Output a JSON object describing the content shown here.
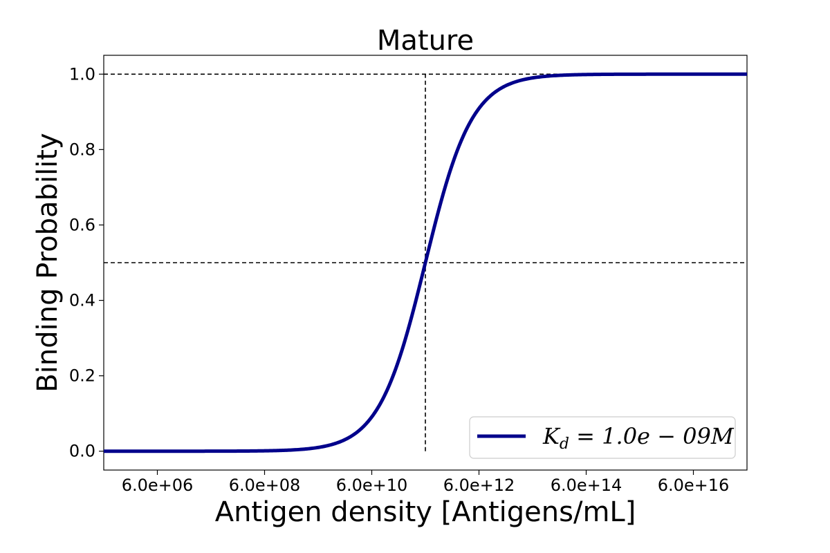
{
  "chart_data": {
    "type": "line",
    "title": "Mature",
    "xlabel": "Antigen density [Antigens/mL]",
    "ylabel": "Binding Probability",
    "x_scale": "log",
    "xlim": [
      600000.0,
      6e+17
    ],
    "ylim": [
      -0.05,
      1.05
    ],
    "x_ticks": [
      6000000.0,
      600000000.0,
      60000000000.0,
      6000000000000.0,
      600000000000000.0,
      6e+16
    ],
    "x_tick_labels": [
      "6.0e+06",
      "6.0e+08",
      "6.0e+10",
      "6.0e+12",
      "6.0e+14",
      "6.0e+16"
    ],
    "y_ticks": [
      0.0,
      0.2,
      0.4,
      0.6,
      0.8,
      1.0
    ],
    "y_tick_labels": [
      "0.0",
      "0.2",
      "0.4",
      "0.6",
      "0.8",
      "1.0"
    ],
    "grid": false,
    "legend": {
      "placement": "lower-right",
      "label": "K_d = 1.0e - 09M"
    },
    "series": [
      {
        "name": "K_d = 1.0e - 09M",
        "color": "#00008b",
        "curve": "hill",
        "x_range": [
          600000.0,
          6e+17
        ],
        "ec50": 600000000000.0,
        "hill_coefficient": 1,
        "points": [
          [
            600000.0,
            0.0
          ],
          [
            60000000.0,
            0.0001
          ],
          [
            600000000.0,
            0.001
          ],
          [
            6000000000.0,
            0.0099
          ],
          [
            60000000000.0,
            0.0909
          ],
          [
            600000000000.0,
            0.5
          ],
          [
            6000000000000.0,
            0.9091
          ],
          [
            60000000000000.0,
            0.9901
          ],
          [
            600000000000000.0,
            0.999
          ],
          [
            6e+17,
            1.0
          ]
        ]
      }
    ],
    "reference_lines": [
      {
        "orientation": "horizontal",
        "y": 1.0,
        "x_from": 600000.0,
        "x_to": 6e+17,
        "style": "dashed",
        "color": "#000000"
      },
      {
        "orientation": "horizontal",
        "y": 0.5,
        "x_from": 600000.0,
        "x_to": 6e+17,
        "style": "dashed",
        "color": "#000000"
      },
      {
        "orientation": "vertical",
        "x": 600000000000.0,
        "y_from": 0.0,
        "y_to": 1.0,
        "style": "dashed",
        "color": "#000000"
      }
    ]
  }
}
